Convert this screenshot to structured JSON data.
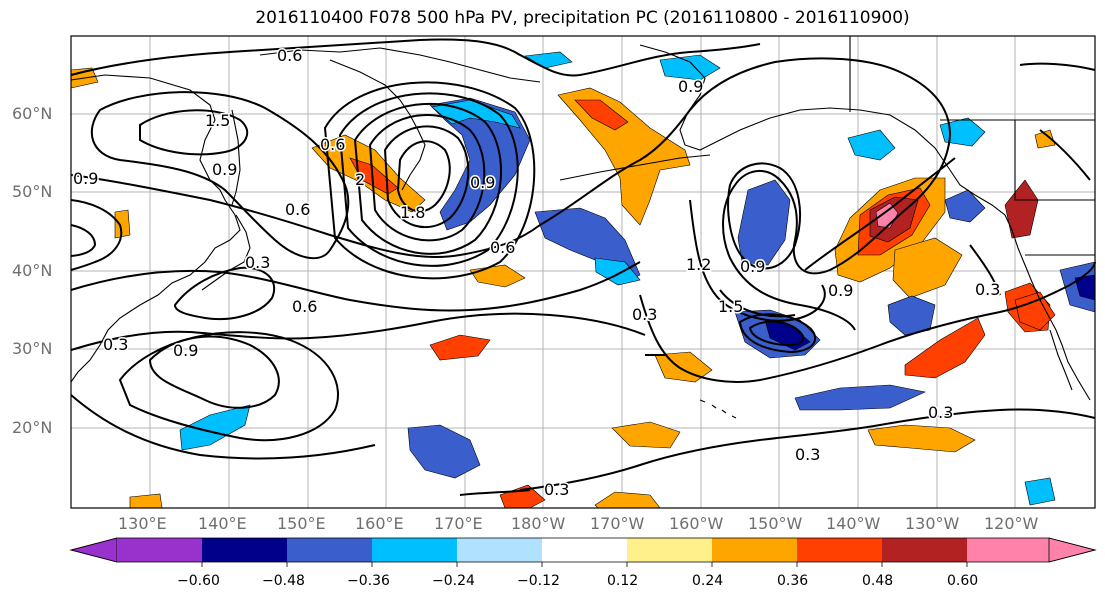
{
  "title": "2016110400 F078 500 hPa PV, precipitation PC (2016110800 - 2016110900)",
  "lat_labels": [
    "60°N",
    "50°N",
    "40°N",
    "30°N",
    "20°N"
  ],
  "lon_labels": [
    "130°E",
    "140°E",
    "150°E",
    "160°E",
    "170°E",
    "180°W",
    "170°W",
    "160°W",
    "150°W",
    "140°W",
    "130°W",
    "120°W"
  ],
  "contour_labels": [
    "0.6",
    "0.9",
    "1.5",
    "0.9",
    "0.6",
    "0.6",
    "2",
    "1.8",
    "0.9",
    "0.3",
    "0.6",
    "0.9",
    "0.3",
    "0.6",
    "0.3",
    "1.2",
    "1.5",
    "0.9",
    "0.9",
    "0.9",
    "0.3",
    "0.3",
    "0.3",
    "0.3"
  ],
  "colorbar": {
    "colors": [
      "#9932cc",
      "#00008b",
      "#3a5fcd",
      "#00bfff",
      "#b0e2ff",
      "#ffffff",
      "#fff08c",
      "#ffa500",
      "#ff4000",
      "#b22222",
      "#ff82ab"
    ],
    "tick_labels": [
      "−0.60",
      "−0.48",
      "−0.36",
      "−0.24",
      "−0.12",
      "0.12",
      "0.24",
      "0.36",
      "0.48",
      "0.60"
    ]
  }
}
